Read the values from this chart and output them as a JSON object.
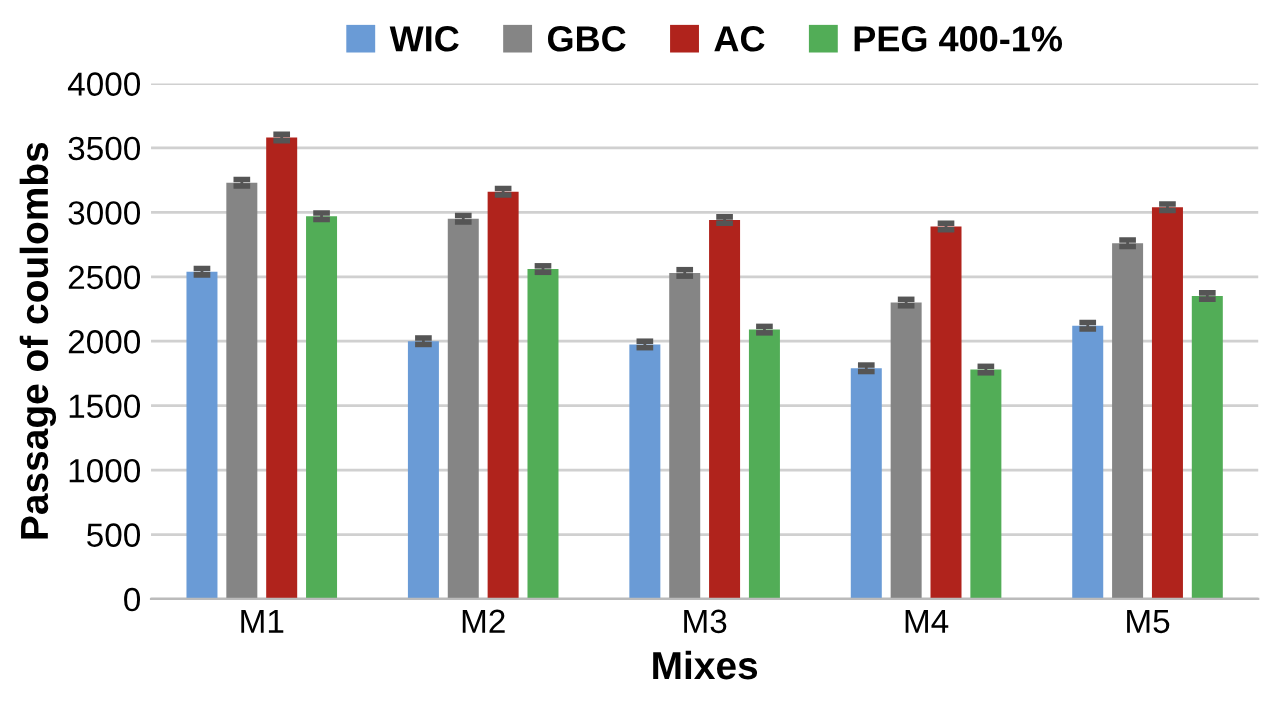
{
  "chart_data": {
    "type": "bar",
    "xlabel": "Mixes",
    "ylabel": "Passage of coulombs",
    "categories": [
      "M1",
      "M2",
      "M3",
      "M4",
      "M5"
    ],
    "series": [
      {
        "name": "WIC",
        "color": "#6a9bd6",
        "values": [
          2540,
          2000,
          1975,
          1790,
          2120
        ],
        "errors": [
          25,
          25,
          25,
          25,
          25
        ]
      },
      {
        "name": "GBC",
        "color": "#858585",
        "values": [
          3230,
          2950,
          2530,
          2300,
          2760
        ],
        "errors": [
          25,
          25,
          25,
          25,
          25
        ]
      },
      {
        "name": "AC",
        "color": "#b0231c",
        "values": [
          3580,
          3160,
          2940,
          2890,
          3040
        ],
        "errors": [
          25,
          25,
          25,
          25,
          25
        ]
      },
      {
        "name": "PEG 400-1%",
        "color": "#52ad57",
        "values": [
          2970,
          2560,
          2090,
          1780,
          2350
        ],
        "errors": [
          25,
          25,
          25,
          25,
          25
        ]
      }
    ],
    "ylim": [
      0,
      4000
    ],
    "yticks": [
      0,
      500,
      1000,
      1500,
      2000,
      2500,
      3000,
      3500,
      4000
    ],
    "grid": "y",
    "legend": "top"
  }
}
